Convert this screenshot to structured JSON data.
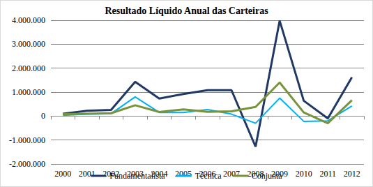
{
  "chart_data": {
    "type": "line",
    "title": "Resultado Líquido Anual das Carteiras",
    "categories": [
      "2000",
      "2001",
      "2002",
      "2003",
      "2004",
      "2005",
      "2006",
      "2007",
      "2008",
      "2009",
      "2010",
      "2011",
      "2012"
    ],
    "series": [
      {
        "name": "Fundamentalista",
        "color": "#1f3864",
        "values": [
          100000,
          220000,
          260000,
          1430000,
          730000,
          920000,
          1080000,
          1080000,
          -1280000,
          3980000,
          640000,
          -100000,
          1620000
        ]
      },
      {
        "name": "Técnica",
        "color": "#00b0f0",
        "values": [
          30000,
          80000,
          100000,
          800000,
          150000,
          150000,
          270000,
          80000,
          -300000,
          750000,
          -220000,
          -200000,
          420000
        ]
      },
      {
        "name": "Conjunta",
        "color": "#77933c",
        "values": [
          80000,
          100000,
          120000,
          450000,
          170000,
          280000,
          180000,
          200000,
          380000,
          1400000,
          150000,
          -300000,
          660000
        ]
      }
    ],
    "ylim": [
      -2000000,
      4000000
    ],
    "yticks": [
      {
        "value": -2000000,
        "label": "-2.000.000"
      },
      {
        "value": -1000000,
        "label": "-1.000.000"
      },
      0,
      {
        "value": 1000000,
        "label": "1.000.000"
      },
      {
        "value": 2000000,
        "label": "2.000.000"
      },
      {
        "value": 3000000,
        "label": "3.000.000"
      },
      {
        "value": 4000000,
        "label": "4.000.000"
      }
    ],
    "grid": true,
    "legend": "bottom"
  }
}
